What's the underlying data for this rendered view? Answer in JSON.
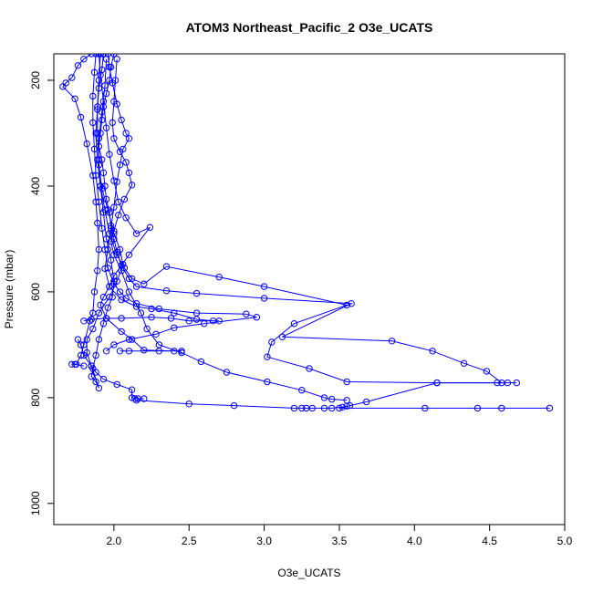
{
  "chart_data": {
    "type": "scatter",
    "title": "ATOM3 Northeast_Pacific_2 O3e_UCATS",
    "xlabel": "O3e_UCATS",
    "ylabel": "Pressure (mbar)",
    "xlim": [
      1.6,
      5.0
    ],
    "ylim": [
      1040,
      150
    ],
    "y_reversed": true,
    "x_ticks": [
      "2.0",
      "2.5",
      "3.0",
      "3.5",
      "4.0",
      "4.5",
      "5.0"
    ],
    "y_ticks": [
      "200",
      "400",
      "600",
      "800",
      "1000"
    ],
    "grid": false,
    "legend": "none",
    "color": "#0000ff",
    "marker": "open-circle",
    "series": [
      {
        "values": [
          [
            2.0,
            150
          ],
          [
            1.98,
            175
          ],
          [
            1.97,
            200
          ],
          [
            1.95,
            225
          ],
          [
            1.93,
            250
          ],
          [
            1.92,
            275
          ],
          [
            1.91,
            300
          ],
          [
            1.9,
            325
          ],
          [
            1.92,
            350
          ],
          [
            1.93,
            375
          ],
          [
            1.94,
            400
          ],
          [
            1.95,
            425
          ],
          [
            1.97,
            450
          ],
          [
            1.98,
            475
          ],
          [
            2.0,
            500
          ],
          [
            2.02,
            525
          ],
          [
            2.05,
            550
          ],
          [
            2.1,
            575
          ],
          [
            2.15,
            590
          ],
          [
            2.35,
            598
          ],
          [
            2.55,
            603
          ],
          [
            3.0,
            612
          ],
          [
            3.58,
            622
          ],
          [
            3.12,
            685
          ],
          [
            3.85,
            693
          ],
          [
            4.12,
            712
          ],
          [
            4.33,
            735
          ],
          [
            4.48,
            750
          ],
          [
            4.58,
            772
          ],
          [
            4.15,
            772
          ],
          [
            3.68,
            808
          ],
          [
            3.57,
            815
          ],
          [
            3.5,
            820
          ],
          [
            4.07,
            820
          ],
          [
            4.42,
            820
          ],
          [
            4.58,
            820
          ],
          [
            4.9,
            820
          ]
        ]
      },
      {
        "values": [
          [
            1.85,
            150
          ],
          [
            1.8,
            160
          ],
          [
            1.76,
            172
          ],
          [
            1.72,
            195
          ],
          [
            1.68,
            205
          ],
          [
            1.66,
            212
          ],
          [
            1.74,
            235
          ],
          [
            1.78,
            270
          ],
          [
            1.82,
            320
          ],
          [
            1.86,
            380
          ],
          [
            1.88,
            430
          ],
          [
            1.89,
            470
          ],
          [
            1.9,
            520
          ],
          [
            1.89,
            560
          ],
          [
            1.87,
            600
          ],
          [
            1.86,
            640
          ],
          [
            1.84,
            655
          ],
          [
            1.8,
            700
          ],
          [
            1.78,
            720
          ],
          [
            1.75,
            737
          ],
          [
            1.72,
            737
          ],
          [
            1.74,
            737
          ],
          [
            1.8,
            740
          ]
        ]
      },
      {
        "values": [
          [
            1.9,
            150
          ],
          [
            1.91,
            190
          ],
          [
            1.93,
            240
          ],
          [
            1.95,
            290
          ],
          [
            1.97,
            340
          ],
          [
            2.0,
            390
          ],
          [
            2.03,
            430
          ],
          [
            2.08,
            460
          ],
          [
            2.15,
            490
          ],
          [
            2.24,
            478
          ],
          [
            2.1,
            530
          ],
          [
            2.0,
            570
          ],
          [
            1.97,
            590
          ],
          [
            1.93,
            610
          ],
          [
            1.91,
            625
          ],
          [
            1.95,
            650
          ],
          [
            2.05,
            675
          ],
          [
            2.12,
            690
          ],
          [
            2.2,
            710
          ],
          [
            2.4,
            712
          ],
          [
            2.45,
            712
          ],
          [
            2.3,
            712
          ],
          [
            2.1,
            712
          ],
          [
            2.04,
            712
          ]
        ]
      },
      {
        "values": [
          [
            1.93,
            150
          ],
          [
            1.92,
            180
          ],
          [
            1.9,
            215
          ],
          [
            1.89,
            255
          ],
          [
            1.88,
            300
          ],
          [
            1.89,
            350
          ],
          [
            1.91,
            400
          ],
          [
            1.94,
            445
          ],
          [
            1.97,
            490
          ],
          [
            2.02,
            530
          ],
          [
            2.07,
            555
          ],
          [
            2.12,
            575
          ],
          [
            2.2,
            585
          ],
          [
            2.35,
            552
          ],
          [
            2.7,
            572
          ],
          [
            3.0,
            590
          ],
          [
            3.55,
            625
          ],
          [
            3.2,
            660
          ],
          [
            3.05,
            695
          ],
          [
            3.02,
            723
          ],
          [
            3.3,
            745
          ],
          [
            3.55,
            770
          ],
          [
            4.15,
            772
          ],
          [
            4.55,
            772
          ],
          [
            4.62,
            772
          ],
          [
            4.68,
            772
          ]
        ]
      },
      {
        "values": [
          [
            1.96,
            150
          ],
          [
            1.97,
            175
          ],
          [
            1.99,
            205
          ],
          [
            2.02,
            245
          ],
          [
            2.05,
            275
          ],
          [
            2.08,
            300
          ],
          [
            2.1,
            310
          ],
          [
            2.06,
            330
          ],
          [
            2.04,
            360
          ],
          [
            2.02,
            392
          ],
          [
            2.0,
            440
          ],
          [
            1.98,
            480
          ],
          [
            1.96,
            520
          ],
          [
            1.94,
            556
          ],
          [
            1.97,
            590
          ],
          [
            2.05,
            615
          ],
          [
            2.15,
            628
          ],
          [
            2.25,
            632
          ],
          [
            2.4,
            640
          ],
          [
            2.55,
            652
          ],
          [
            2.66,
            655
          ],
          [
            2.7,
            655
          ],
          [
            2.5,
            655
          ],
          [
            2.38,
            650
          ],
          [
            2.25,
            648
          ],
          [
            2.05,
            650
          ],
          [
            1.95,
            650
          ],
          [
            1.85,
            652
          ],
          [
            1.8,
            655
          ]
        ]
      },
      {
        "values": [
          [
            1.88,
            150
          ],
          [
            1.87,
            185
          ],
          [
            1.86,
            230
          ],
          [
            1.86,
            280
          ],
          [
            1.87,
            330
          ],
          [
            1.88,
            380
          ],
          [
            1.9,
            430
          ],
          [
            1.92,
            480
          ],
          [
            1.94,
            520
          ],
          [
            1.96,
            555
          ],
          [
            2.0,
            585
          ],
          [
            2.04,
            600
          ],
          [
            2.08,
            612
          ],
          [
            2.15,
            622
          ],
          [
            2.3,
            632
          ],
          [
            2.55,
            640
          ],
          [
            2.88,
            642
          ],
          [
            2.95,
            648
          ],
          [
            2.6,
            660
          ],
          [
            2.4,
            668
          ],
          [
            2.28,
            680
          ],
          [
            2.1,
            690
          ],
          [
            2.0,
            700
          ],
          [
            1.95,
            712
          ]
        ]
      },
      {
        "values": [
          [
            2.02,
            160
          ],
          [
            2.01,
            200
          ],
          [
            2.0,
            240
          ],
          [
            1.99,
            280
          ],
          [
            2.0,
            310
          ],
          [
            2.04,
            335
          ],
          [
            2.08,
            355
          ],
          [
            2.1,
            375
          ],
          [
            2.12,
            398
          ],
          [
            2.07,
            425
          ],
          [
            2.03,
            455
          ],
          [
            2.0,
            485
          ],
          [
            1.98,
            505
          ],
          [
            2.0,
            530
          ],
          [
            2.05,
            560
          ],
          [
            2.1,
            600
          ],
          [
            2.18,
            640
          ],
          [
            2.22,
            670
          ],
          [
            2.3,
            700
          ],
          [
            2.45,
            715
          ],
          [
            2.58,
            732
          ],
          [
            2.75,
            752
          ],
          [
            3.02,
            770
          ],
          [
            3.25,
            786
          ],
          [
            3.4,
            800
          ],
          [
            3.45,
            803
          ],
          [
            3.55,
            805
          ]
        ]
      },
      {
        "values": [
          [
            1.95,
            160
          ],
          [
            1.94,
            210
          ],
          [
            1.92,
            260
          ],
          [
            1.9,
            310
          ],
          [
            1.9,
            360
          ],
          [
            1.92,
            405
          ],
          [
            1.96,
            445
          ],
          [
            2.0,
            490
          ],
          [
            2.04,
            520
          ],
          [
            2.06,
            548
          ],
          [
            2.02,
            580
          ],
          [
            1.97,
            610
          ],
          [
            1.9,
            640
          ],
          [
            1.86,
            670
          ],
          [
            1.82,
            690
          ],
          [
            1.82,
            715
          ],
          [
            1.85,
            740
          ],
          [
            1.88,
            752
          ],
          [
            1.93,
            765
          ],
          [
            2.02,
            775
          ],
          [
            2.12,
            785
          ],
          [
            2.12,
            800
          ],
          [
            2.14,
            802
          ],
          [
            2.16,
            802
          ],
          [
            2.2,
            802
          ]
        ]
      },
      {
        "values": [
          [
            1.91,
            150
          ],
          [
            1.9,
            200
          ],
          [
            1.89,
            250
          ],
          [
            1.89,
            300
          ],
          [
            1.9,
            350
          ],
          [
            1.91,
            400
          ],
          [
            1.93,
            450
          ],
          [
            1.95,
            500
          ],
          [
            1.98,
            540
          ],
          [
            2.0,
            580
          ],
          [
            1.99,
            610
          ],
          [
            1.96,
            630
          ],
          [
            1.93,
            660
          ],
          [
            1.9,
            690
          ],
          [
            1.88,
            720
          ],
          [
            1.86,
            745
          ],
          [
            1.85,
            760
          ],
          [
            1.88,
            770
          ],
          [
            1.9,
            782
          ],
          [
            1.85,
            740
          ],
          [
            1.8,
            720
          ],
          [
            1.78,
            700
          ],
          [
            1.76,
            690
          ]
        ]
      },
      {
        "values": [
          [
            2.15,
            805
          ],
          [
            2.5,
            812
          ],
          [
            2.8,
            815
          ],
          [
            3.2,
            820
          ],
          [
            3.25,
            820
          ],
          [
            3.28,
            820
          ],
          [
            3.32,
            820
          ],
          [
            3.4,
            820
          ],
          [
            3.45,
            820
          ],
          [
            3.52,
            818
          ],
          [
            3.55,
            816
          ]
        ]
      }
    ]
  }
}
